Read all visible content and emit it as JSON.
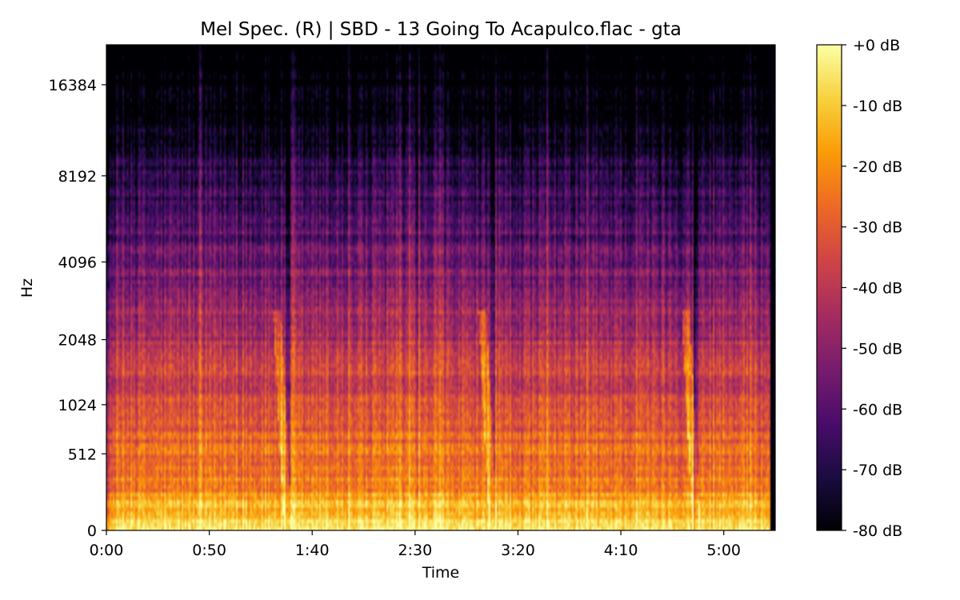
{
  "chart_data": {
    "type": "heatmap",
    "title": "Mel Spec. (R) | SBD - 13 Going To Acapulco.flac - gta",
    "xlabel": "Time",
    "ylabel": "Hz",
    "x_ticks": [
      "0:00",
      "0:50",
      "1:40",
      "2:30",
      "3:20",
      "4:10",
      "5:00"
    ],
    "x_tick_seconds": [
      0,
      50,
      100,
      150,
      200,
      250,
      300
    ],
    "xlim_seconds": [
      0,
      325
    ],
    "y_scale": "mel",
    "y_ticks": [
      0,
      512,
      1024,
      2048,
      4096,
      8192,
      16384
    ],
    "ylim_hz": [
      0,
      22050
    ],
    "colormap": "inferno",
    "colorbar": {
      "ticks": [
        "+0 dB",
        "-10 dB",
        "-20 dB",
        "-30 dB",
        "-40 dB",
        "-50 dB",
        "-60 dB",
        "-70 dB",
        "-80 dB"
      ],
      "range_db": [
        -80,
        0
      ]
    },
    "colormap_stops": [
      "#000004",
      "#1b0c41",
      "#4a0c6b",
      "#781c6d",
      "#a52c60",
      "#cf4446",
      "#ed6925",
      "#fb9b06",
      "#f7d13d",
      "#fcffa4"
    ],
    "features": {
      "loud_low_band_below_hz": 300,
      "transient_dips_seconds": [
        88,
        188,
        287
      ],
      "track_end_seconds": 323
    },
    "grid": false
  }
}
